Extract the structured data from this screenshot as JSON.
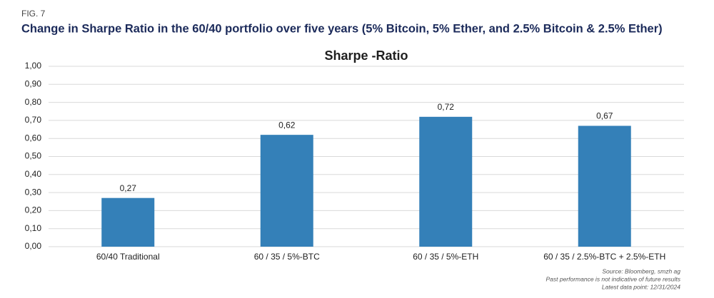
{
  "chart_data": {
    "type": "bar",
    "figure_label": "FIG. 7",
    "title": "Change in Sharpe Ratio in the 60/40 portfolio over five years (5% Bitcoin, 5% Ether, and 2.5% Bitcoin & 2.5% Ether)",
    "chart_title": "Sharpe -Ratio",
    "categories": [
      "60/40 Traditional",
      "60 / 35 / 5%-BTC",
      "60 / 35 / 5%-ETH",
      "60 / 35 / 2.5%-BTC + 2.5%-ETH"
    ],
    "values": [
      0.27,
      0.62,
      0.72,
      0.67
    ],
    "value_labels": [
      "0,27",
      "0,62",
      "0,72",
      "0,67"
    ],
    "color": "#3480b8",
    "ylim": [
      0,
      1
    ],
    "yticks": [
      {
        "value": 0,
        "label": "0,00"
      },
      {
        "value": 0.1,
        "label": "0,10"
      },
      {
        "value": 0.2,
        "label": "0,20"
      },
      {
        "value": 0.3,
        "label": "0,30"
      },
      {
        "value": 0.4,
        "label": "0,40"
      },
      {
        "value": 0.5,
        "label": "0,50"
      },
      {
        "value": 0.6,
        "label": "0,60"
      },
      {
        "value": 0.7,
        "label": "0,70"
      },
      {
        "value": 0.8,
        "label": "0,80"
      },
      {
        "value": 0.9,
        "label": "0,90"
      },
      {
        "value": 1,
        "label": "1,00"
      }
    ],
    "grid": true,
    "source_notes": [
      "Source: Bloomberg, smzh ag",
      "Past performance is not indicative of future results",
      "Latest data point: 12/31/2024"
    ]
  }
}
